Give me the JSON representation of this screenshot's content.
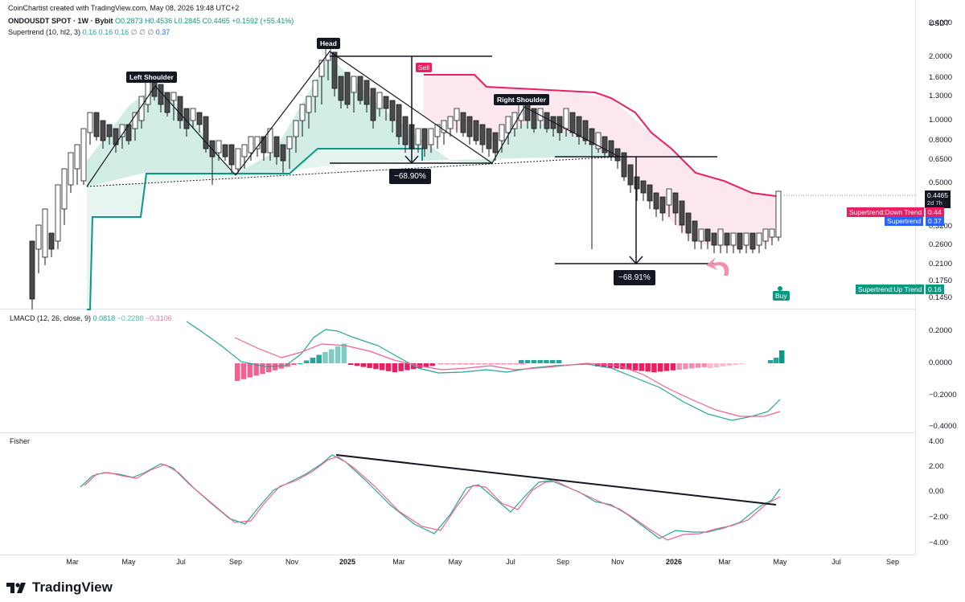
{
  "header": {
    "line1": "CoinChartist created with TradingView.com, May 08, 2026 19:48 UTC+2",
    "symbol": "ONDOUSDT SPOT · 1W · Bybit",
    "ohlc": {
      "o": "O0.2873",
      "h": "H0.4536",
      "l": "L0.2845",
      "c": "C0.4465",
      "chg": "+0.1592 (+55.41%)"
    },
    "supertrend": {
      "name": "Supertrend (10, hl2, 3)",
      "v1": "0.16",
      "v2": "0.16",
      "v3": "0.16",
      "v4": "∅",
      "v5": "∅",
      "v6": "∅",
      "v7": "0.37"
    }
  },
  "price_axis": {
    "currency": "USDT",
    "labels": [
      "2.4000",
      "2.0000",
      "1.6000",
      "1.3000",
      "1.0000",
      "0.8000",
      "0.6500",
      "0.5000",
      "0.3200",
      "0.2600",
      "0.2100",
      "0.1750",
      "0.1450"
    ],
    "current": {
      "price": "0.4465",
      "countdown": "2d 7h"
    },
    "tags": [
      {
        "label": "Supertrend:Down Trend",
        "value": "0.44",
        "color": "#e91e63"
      },
      {
        "label": "Supertrend",
        "value": "0.37",
        "color": "#2962ff"
      },
      {
        "label": "Supertrend:Up Trend",
        "value": "0.16",
        "color": "#089981"
      }
    ]
  },
  "annotations": {
    "left_shoulder": "Left Shoulder",
    "head": "Head",
    "right_shoulder": "Right Shoulder",
    "drop1": "−68.90%",
    "drop2": "−68.91%",
    "sell": "Sell",
    "buy": "Buy"
  },
  "lmacd": {
    "title": "LMACD (12, 26, close, 9)",
    "v1": "0.0818",
    "v2": "−0.2288",
    "v3": "−0.3106",
    "axis": [
      "0.2000",
      "0.0000",
      "−0.2000",
      "−0.4000"
    ]
  },
  "fisher": {
    "title": "Fisher",
    "axis": [
      "4.00",
      "2.00",
      "0.00",
      "−2.00",
      "−4.00"
    ]
  },
  "time_axis": [
    "Mar",
    "May",
    "Jul",
    "Sep",
    "Nov",
    "2025",
    "Mar",
    "May",
    "Jul",
    "Sep",
    "Nov",
    "2026",
    "Mar",
    "May",
    "Jul",
    "Sep"
  ],
  "brand": "TradingView",
  "colors": {
    "up": "#ffffff",
    "down": "#4a4a4a",
    "supertrend_up": "#089981",
    "supertrend_down": "#e91e63",
    "macd": "#26a69a",
    "signal": "#f06292",
    "fisher": "#26a69a",
    "trigger": "#f06292"
  },
  "chart_data": {
    "type": "candlestick",
    "title": "ONDOUSDT SPOT · 1W · Bybit",
    "y_scale": "log",
    "ylim": [
      0.14,
      2.5
    ],
    "pattern": "Head and Shoulders",
    "points": [
      {
        "name": "Left Shoulder",
        "date": "2024-06",
        "price": 1.48
      },
      {
        "name": "Head",
        "date": "2024-12",
        "price": 2.14
      },
      {
        "name": "Right Shoulder",
        "date": "2025-07",
        "price": 1.15
      }
    ],
    "measured_moves": [
      "−68.90%",
      "−68.91%"
    ],
    "last_close": 0.4465,
    "supertrend_down": 0.44,
    "supertrend_up": 0.16
  }
}
